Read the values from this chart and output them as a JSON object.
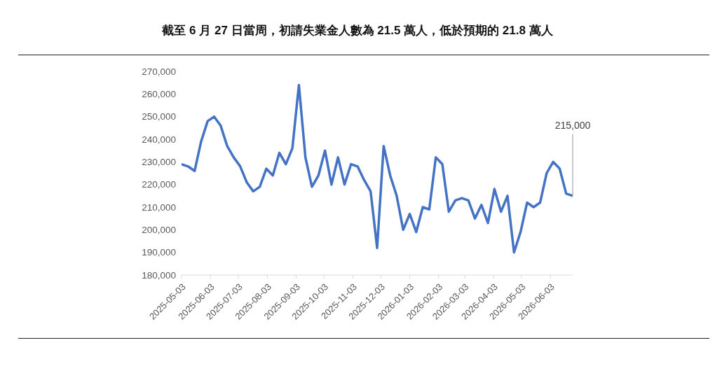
{
  "chart_data": {
    "type": "line",
    "title": "截至 6 月 27 日當周，初請失業金人數為 21.5 萬人，低於預期的 21.8 萬人",
    "x": [
      "2025-05-03",
      "2025-05-10",
      "2025-05-17",
      "2025-05-24",
      "2025-05-31",
      "2025-06-07",
      "2025-06-14",
      "2025-06-21",
      "2025-06-28",
      "2025-07-05",
      "2025-07-12",
      "2025-07-19",
      "2025-07-26",
      "2025-08-02",
      "2025-08-09",
      "2025-08-16",
      "2025-08-23",
      "2025-08-30",
      "2025-09-06",
      "2025-09-13",
      "2025-09-20",
      "2025-09-27",
      "2025-10-04",
      "2025-10-11",
      "2025-10-18",
      "2025-10-25",
      "2025-11-01",
      "2025-11-08",
      "2025-11-15",
      "2025-11-22",
      "2025-11-29",
      "2025-12-06",
      "2025-12-13",
      "2025-12-20",
      "2025-12-27",
      "2026-01-03",
      "2026-01-10",
      "2026-01-17",
      "2026-01-24",
      "2026-01-31",
      "2026-02-07",
      "2026-02-14",
      "2026-02-21",
      "2026-02-28",
      "2026-03-07",
      "2026-03-14",
      "2026-03-21",
      "2026-03-28",
      "2026-04-04",
      "2026-04-11",
      "2026-04-18",
      "2026-04-25",
      "2026-05-02",
      "2026-05-09",
      "2026-05-16",
      "2026-05-23",
      "2026-05-30",
      "2026-06-06",
      "2026-06-13",
      "2026-06-20",
      "2026-06-27"
    ],
    "series": [
      {
        "color": "#4472c4",
        "values": [
          229000,
          228000,
          226000,
          239000,
          248000,
          250000,
          246000,
          237000,
          232000,
          228000,
          221000,
          217000,
          219000,
          227000,
          224000,
          234000,
          229000,
          236000,
          264000,
          232000,
          219000,
          224000,
          235000,
          220000,
          232000,
          220000,
          229000,
          228000,
          222000,
          217000,
          192000,
          237000,
          224000,
          215000,
          200000,
          207000,
          199000,
          210000,
          209000,
          232000,
          229000,
          208000,
          213000,
          214000,
          213000,
          205000,
          211000,
          203000,
          218000,
          208000,
          215000,
          190000,
          199000,
          212000,
          210000,
          212000,
          225000,
          230000,
          227000,
          216000,
          215000
        ]
      }
    ],
    "xlim": [
      "2025-05-03",
      "2026-06-27"
    ],
    "xticks": [
      "2025-05-03",
      "2025-06-03",
      "2025-07-03",
      "2025-08-03",
      "2025-09-03",
      "2025-10-03",
      "2025-11-03",
      "2025-12-03",
      "2026-01-03",
      "2026-02-03",
      "2026-03-03",
      "2026-04-03",
      "2026-05-03",
      "2026-06-03"
    ],
    "ylim": [
      180000,
      270000
    ],
    "yticks": [
      {
        "value": 180000,
        "label": "180,000"
      },
      {
        "value": 190000,
        "label": "190,000"
      },
      {
        "value": 200000,
        "label": "200,000"
      },
      {
        "value": 210000,
        "label": "210,000"
      },
      {
        "value": 220000,
        "label": "220,000"
      },
      {
        "value": 230000,
        "label": "230,000"
      },
      {
        "value": 240000,
        "label": "240,000"
      },
      {
        "value": 250000,
        "label": "250,000"
      },
      {
        "value": 260000,
        "label": "260,000"
      },
      {
        "value": 270000,
        "label": "270,000"
      }
    ],
    "annotations": [
      {
        "text": "215,000",
        "x": "2026-06-27",
        "y": 215000
      }
    ],
    "marker": "none",
    "line_style": "solid",
    "grid": false,
    "legend": false
  }
}
